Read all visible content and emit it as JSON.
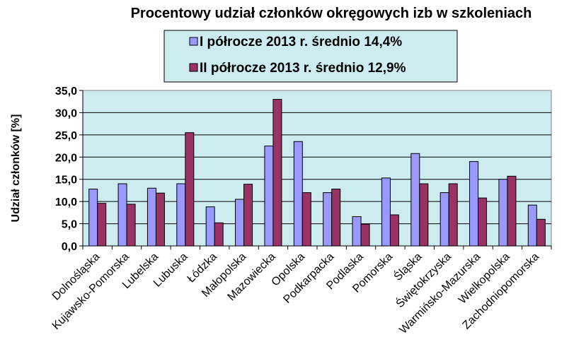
{
  "chart_data": {
    "type": "bar",
    "title": "Procentowy  udział  członków  okręgowych  izb  w  szkoleniach",
    "xlabel": "",
    "ylabel": "Udział  członków  [%]",
    "ylim": [
      0,
      35
    ],
    "yticks": [
      "0,0",
      "5,0",
      "10,0",
      "15,0",
      "20,0",
      "25,0",
      "30,0",
      "35,0"
    ],
    "grid": true,
    "legend_position": "top-center",
    "categories": [
      "Dolnośląska",
      "Kujawsko-Pomorska",
      "Lubelska",
      "Lubuska",
      "Łódzka",
      "Małopolska",
      "Mazowiecka",
      "Opolska",
      "Podkarpacka",
      "Podlaska",
      "Pomorska",
      "Śląska",
      "Świętokrzyska",
      "Warmińsko-Mazurska",
      "Wielkopolska",
      "Zachodniopomorska"
    ],
    "series": [
      {
        "name": "I półrocze 2013 r. średnio 14,4%",
        "color": "#9999FF",
        "values": [
          12.8,
          14.0,
          13.0,
          14.0,
          8.8,
          10.5,
          22.5,
          23.5,
          12.0,
          6.6,
          15.3,
          20.8,
          12.0,
          19.0,
          15.0,
          9.2
        ]
      },
      {
        "name": "II półrocze 2013 r. średnio 12,9%",
        "color": "#993366",
        "values": [
          9.6,
          9.4,
          11.9,
          25.5,
          5.2,
          13.9,
          33.0,
          12.0,
          12.8,
          4.9,
          7.0,
          14.0,
          14.0,
          10.8,
          15.7,
          6.0
        ]
      }
    ],
    "plot_bg": "#CCECF0",
    "legend_bg": "#CCECF0"
  }
}
